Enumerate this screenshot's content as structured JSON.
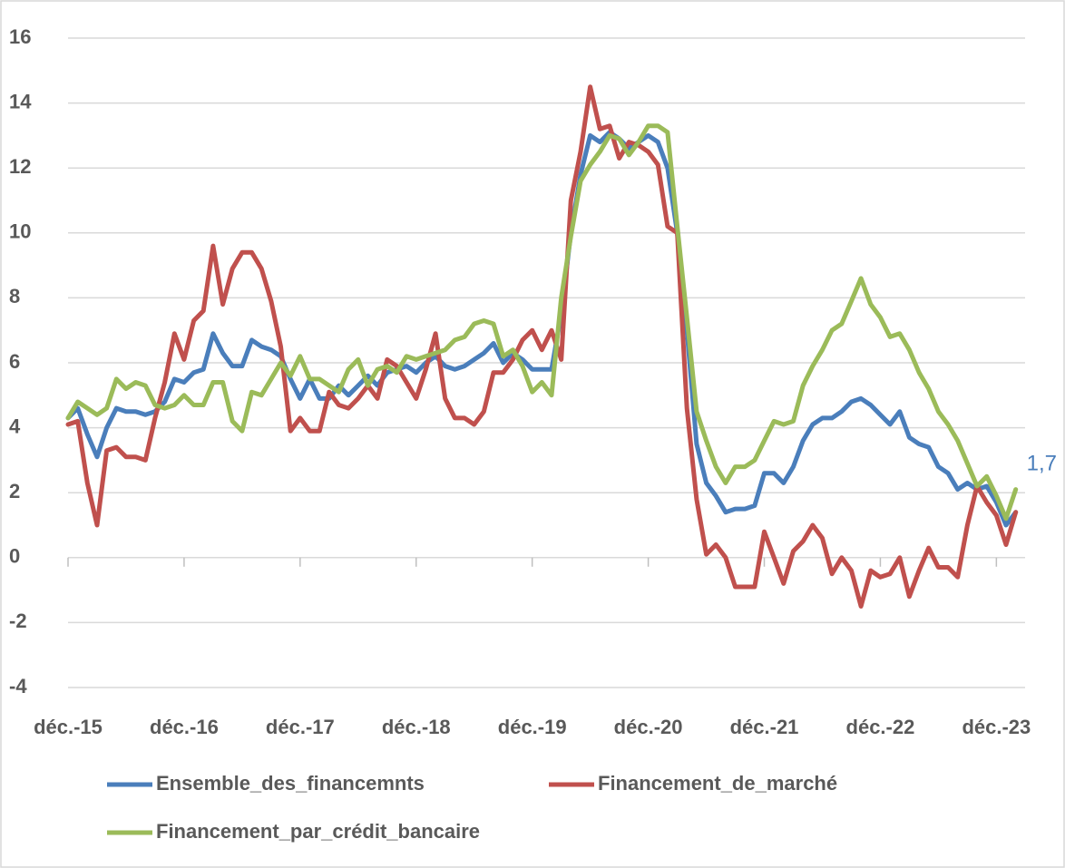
{
  "chart_data": {
    "type": "line",
    "categories": [
      "déc.-15",
      null,
      null,
      null,
      null,
      null,
      null,
      null,
      null,
      null,
      null,
      null,
      "déc.-16",
      null,
      null,
      null,
      null,
      null,
      null,
      null,
      null,
      null,
      null,
      null,
      "déc.-17",
      null,
      null,
      null,
      null,
      null,
      null,
      null,
      null,
      null,
      null,
      null,
      "déc.-18",
      null,
      null,
      null,
      null,
      null,
      null,
      null,
      null,
      null,
      null,
      null,
      "déc.-19",
      null,
      null,
      null,
      null,
      null,
      null,
      null,
      null,
      null,
      null,
      null,
      "déc.-20",
      null,
      null,
      null,
      null,
      null,
      null,
      null,
      null,
      null,
      null,
      null,
      "déc.-21",
      null,
      null,
      null,
      null,
      null,
      null,
      null,
      null,
      null,
      null,
      null,
      "déc.-22",
      null,
      null,
      null,
      null,
      null,
      null,
      null,
      null,
      null,
      null,
      null,
      "déc.-23",
      null,
      null
    ],
    "series": [
      {
        "name": "Ensemble_des_financemnts",
        "color": "#4a7ebb",
        "values": [
          4.3,
          4.6,
          3.8,
          3.1,
          4.0,
          4.6,
          4.5,
          4.5,
          4.4,
          4.5,
          4.8,
          5.5,
          5.4,
          5.7,
          5.8,
          6.9,
          6.3,
          5.9,
          5.9,
          6.7,
          6.5,
          6.4,
          6.2,
          5.5,
          4.9,
          5.5,
          4.9,
          4.9,
          5.3,
          5.0,
          5.3,
          5.6,
          5.3,
          5.7,
          5.8,
          5.9,
          5.7,
          6.0,
          6.2,
          5.9,
          5.8,
          5.9,
          6.1,
          6.3,
          6.6,
          6.0,
          6.3,
          6.1,
          5.8,
          5.8,
          5.8,
          7.5,
          10.0,
          11.8,
          13.0,
          12.8,
          13.1,
          12.9,
          12.6,
          12.8,
          13.0,
          12.8,
          12.0,
          10.0,
          7.0,
          3.5,
          2.3,
          1.9,
          1.4,
          1.5,
          1.5,
          1.6,
          2.6,
          2.6,
          2.3,
          2.8,
          3.6,
          4.1,
          4.3,
          4.3,
          4.5,
          4.8,
          4.9,
          4.7,
          4.4,
          4.1,
          4.5,
          3.7,
          3.5,
          3.4,
          2.8,
          2.6,
          2.1,
          2.3,
          2.1,
          2.2,
          1.7,
          1.0,
          1.4
        ]
      },
      {
        "name": "Financement_de_marché",
        "color": "#c0504d",
        "values": [
          4.1,
          4.2,
          2.3,
          1.0,
          3.3,
          3.4,
          3.1,
          3.1,
          3.0,
          4.3,
          5.4,
          6.9,
          6.1,
          7.3,
          7.6,
          9.6,
          7.8,
          8.9,
          9.4,
          9.4,
          8.9,
          7.9,
          6.5,
          3.9,
          4.3,
          3.9,
          3.9,
          5.1,
          4.7,
          4.6,
          4.9,
          5.3,
          4.9,
          6.1,
          5.9,
          5.4,
          4.9,
          5.8,
          6.9,
          4.9,
          4.3,
          4.3,
          4.1,
          4.5,
          5.7,
          5.7,
          6.1,
          6.7,
          7.0,
          6.4,
          7.0,
          6.1,
          11.0,
          12.5,
          14.5,
          13.2,
          13.3,
          12.3,
          12.8,
          12.7,
          12.5,
          12.1,
          10.2,
          10.0,
          4.6,
          1.8,
          0.1,
          0.4,
          0.0,
          -0.9,
          -0.9,
          -0.9,
          0.8,
          0.0,
          -0.8,
          0.2,
          0.5,
          1.0,
          0.6,
          -0.5,
          0.0,
          -0.4,
          -1.5,
          -0.4,
          -0.6,
          -0.5,
          0.0,
          -1.2,
          -0.4,
          0.3,
          -0.3,
          -0.3,
          -0.6,
          1.0,
          2.2,
          1.7,
          1.3,
          0.4,
          1.4
        ]
      },
      {
        "name": "Financement_par_crédit_bancaire",
        "color": "#9bbb59",
        "values": [
          4.3,
          4.8,
          4.6,
          4.4,
          4.6,
          5.5,
          5.2,
          5.4,
          5.3,
          4.7,
          4.6,
          4.7,
          5.0,
          4.7,
          4.7,
          5.4,
          5.4,
          4.2,
          3.9,
          5.1,
          5.0,
          5.5,
          6.0,
          5.6,
          6.2,
          5.5,
          5.5,
          5.3,
          5.1,
          5.8,
          6.1,
          5.3,
          5.8,
          5.9,
          5.7,
          6.2,
          6.1,
          6.2,
          6.3,
          6.4,
          6.7,
          6.8,
          7.2,
          7.3,
          7.2,
          6.2,
          6.4,
          5.9,
          5.1,
          5.4,
          5.0,
          8.0,
          9.9,
          11.6,
          12.1,
          12.5,
          13.0,
          12.9,
          12.4,
          12.8,
          13.3,
          13.3,
          13.1,
          10.2,
          7.4,
          4.5,
          3.6,
          2.8,
          2.3,
          2.8,
          2.8,
          3.0,
          3.6,
          4.2,
          4.1,
          4.2,
          5.3,
          5.9,
          6.4,
          7.0,
          7.2,
          7.9,
          8.6,
          7.8,
          7.4,
          6.8,
          6.9,
          6.4,
          5.7,
          5.2,
          4.5,
          4.1,
          3.6,
          2.9,
          2.2,
          2.5,
          1.9,
          1.2,
          2.1
        ]
      }
    ],
    "annotation": "1,7",
    "annotation_color": "#4a7ebb",
    "ylim": [
      -4,
      16
    ],
    "yticks": [
      -4,
      -2,
      0,
      2,
      4,
      6,
      8,
      10,
      12,
      14,
      16
    ],
    "grid": true
  }
}
